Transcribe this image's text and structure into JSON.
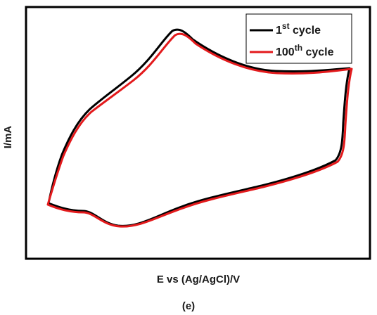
{
  "chart_data": {
    "type": "line",
    "title": "",
    "xlabel": "E vs (Ag/AgCl)/V",
    "ylabel": "I/mA",
    "caption": "(e)",
    "grid": false,
    "legend_position": "top-right",
    "series": [
      {
        "name": "1st cycle",
        "label_base": "1",
        "label_sup": "st",
        "label_suffix": " cycle",
        "color": "#000000"
      },
      {
        "name": "100th cycle",
        "label_base": "100",
        "label_sup": "th",
        "label_suffix": " cycle",
        "color": "#e31a1c"
      }
    ]
  }
}
